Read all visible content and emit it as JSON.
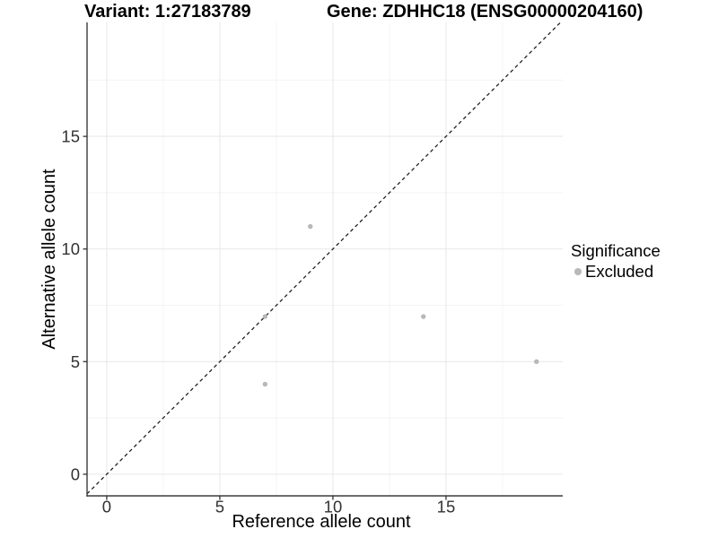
{
  "chart_data": {
    "type": "scatter",
    "titles": {
      "left": "Variant: 1:27183789",
      "right": "Gene: ZDHHC18 (ENSG00000204160)"
    },
    "xlabel": "Reference allele count",
    "ylabel": "Alternative allele count",
    "xlim": [
      -0.87,
      20.16
    ],
    "ylim": [
      -0.96,
      20.06
    ],
    "xticks": {
      "major": [
        0,
        5,
        10,
        15
      ],
      "minor": [
        2.5,
        7.5,
        12.5,
        17.5
      ],
      "labels": [
        "0",
        "5",
        "10",
        "15"
      ]
    },
    "yticks": {
      "major": [
        0,
        5,
        10,
        15
      ],
      "minor": [
        2.5,
        7.5,
        12.5,
        17.5
      ],
      "labels": [
        "0",
        "5",
        "10",
        "15"
      ]
    },
    "grid": "major+minor",
    "reference_line": {
      "type": "identity",
      "slope": 1,
      "intercept": 0,
      "style": "dashed"
    },
    "series": [
      {
        "name": "Excluded",
        "color": "#b8b8b8",
        "points": [
          [
            7,
            4
          ],
          [
            7,
            7
          ],
          [
            9,
            11
          ],
          [
            14,
            7
          ],
          [
            19,
            5
          ]
        ]
      }
    ],
    "legend": {
      "title": "Significance",
      "position": "right",
      "items": [
        {
          "label": "Excluded",
          "color": "#b8b8b8"
        }
      ]
    }
  },
  "style": {
    "background": "#ffffff",
    "grid_major": "#e9e9e9",
    "grid_minor": "#f4f4f4",
    "axis_line": "#3c3c3c",
    "tick_color": "#333333",
    "tick_text": "#333333",
    "ref_line": "#1a1a1a",
    "point_color": "#b8b8b8"
  }
}
